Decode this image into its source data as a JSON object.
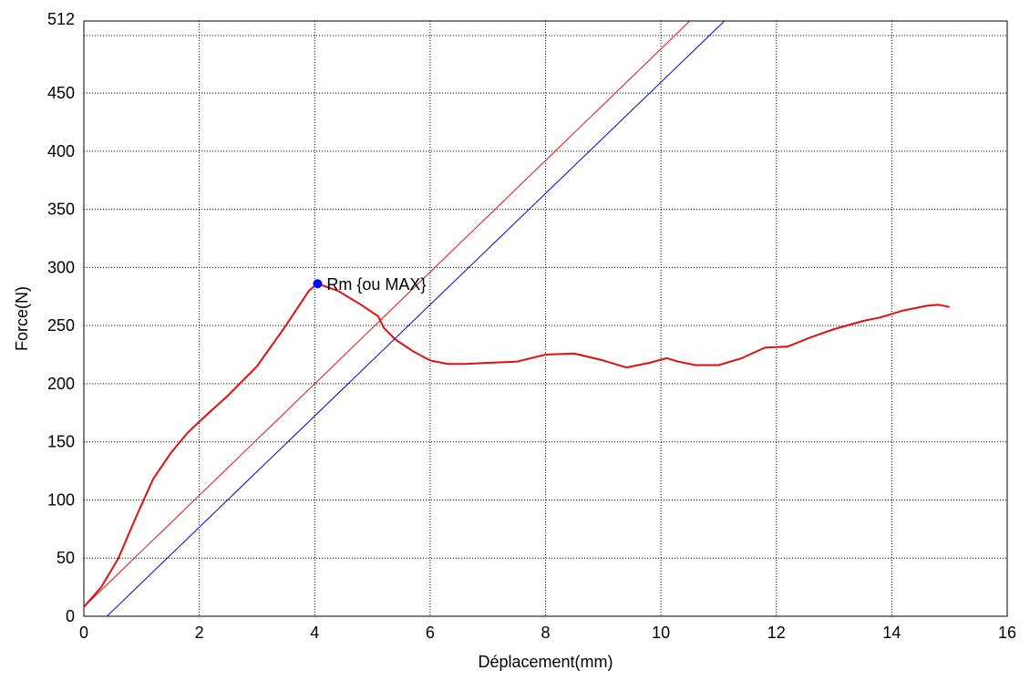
{
  "chart_data": {
    "type": "line",
    "title": "",
    "xlabel": "Déplacement(mm)",
    "ylabel": "Force(N)",
    "xlim": [
      0,
      16
    ],
    "ylim": [
      0,
      512
    ],
    "xticks": [
      0,
      2,
      4,
      6,
      8,
      10,
      12,
      14,
      16
    ],
    "yticks": [
      0,
      50,
      100,
      150,
      200,
      250,
      300,
      350,
      400,
      450,
      512
    ],
    "grid": true,
    "series": [
      {
        "color": "#e01010",
        "x": [
          0,
          0.3,
          0.6,
          0.9,
          1.2,
          1.5,
          1.8,
          2.1,
          2.5,
          3.0,
          3.5,
          3.9,
          4.05,
          4.4,
          4.8,
          5.1,
          5.2,
          5.4,
          5.7,
          6.0,
          6.3,
          6.6,
          7.0,
          7.5,
          8.0,
          8.5,
          9.0,
          9.4,
          9.8,
          10.1,
          10.3,
          10.6,
          11.0,
          11.4,
          11.8,
          12.2,
          12.6,
          13.0,
          13.5,
          13.8,
          14.2,
          14.6,
          14.8,
          15.0
        ],
        "y": [
          8,
          25,
          50,
          85,
          118,
          140,
          158,
          172,
          190,
          215,
          250,
          280,
          286,
          280,
          268,
          258,
          248,
          238,
          228,
          220,
          217,
          217,
          218,
          219,
          225,
          226,
          220,
          214,
          218,
          222,
          219,
          216,
          216,
          222,
          231,
          232,
          240,
          247,
          254,
          257,
          263,
          267,
          268,
          266
        ]
      },
      {
        "color": "#e01010",
        "x": [
          0.0,
          10.5
        ],
        "y": [
          8,
          512
        ]
      },
      {
        "color": "#0000d8",
        "x": [
          0.4,
          11.1
        ],
        "y": [
          0,
          512
        ]
      }
    ],
    "annotations": [
      {
        "label": "Rm {ou MAX}",
        "x": 4.05,
        "y": 286,
        "marker_color": "#0000ff"
      }
    ]
  }
}
